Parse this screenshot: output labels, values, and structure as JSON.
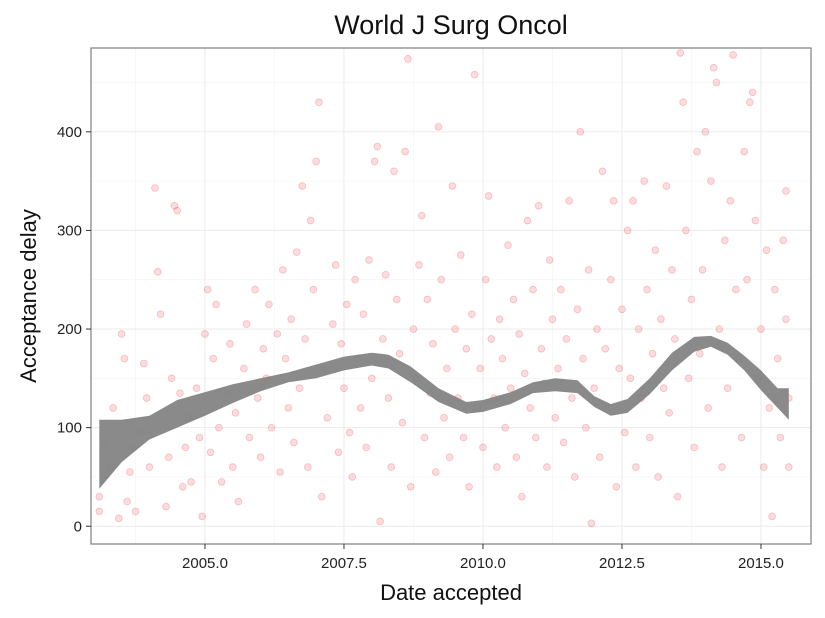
{
  "chart_data": {
    "type": "scatter",
    "title": "World J Surg Oncol",
    "xlabel": "Date accepted",
    "ylabel": "Acceptance delay",
    "xlim": [
      2002.95,
      2015.9
    ],
    "ylim": [
      -18,
      485
    ],
    "x_ticks": [
      2005,
      2007.5,
      2010,
      2012.5,
      2015
    ],
    "x_tick_labels": [
      "2005.0",
      "2007.5",
      "2010.0",
      "2012.5",
      "2015.0"
    ],
    "y_ticks": [
      0,
      100,
      200,
      300,
      400
    ],
    "y_tick_labels": [
      "0",
      "100",
      "200",
      "300",
      "400"
    ],
    "grid": true,
    "colors": {
      "points": "#e8141c",
      "band": "#808080",
      "grid": "#ebebeb",
      "panel_border": "#7f7f7f"
    },
    "point_opacity": 0.15,
    "series": [
      {
        "kind": "points",
        "points": [
          [
            2003.1,
            30
          ],
          [
            2003.1,
            15
          ],
          [
            2003.2,
            85
          ],
          [
            2003.3,
            60
          ],
          [
            2003.35,
            120
          ],
          [
            2003.45,
            8
          ],
          [
            2003.5,
            195
          ],
          [
            2003.55,
            170
          ],
          [
            2003.6,
            25
          ],
          [
            2003.65,
            55
          ],
          [
            2003.7,
            80
          ],
          [
            2003.75,
            15
          ],
          [
            2003.85,
            95
          ],
          [
            2003.9,
            165
          ],
          [
            2003.95,
            130
          ],
          [
            2004.0,
            60
          ],
          [
            2004.1,
            343
          ],
          [
            2004.15,
            258
          ],
          [
            2004.2,
            215
          ],
          [
            2004.3,
            20
          ],
          [
            2004.35,
            70
          ],
          [
            2004.4,
            150
          ],
          [
            2004.45,
            325
          ],
          [
            2004.5,
            320
          ],
          [
            2004.55,
            135
          ],
          [
            2004.6,
            40
          ],
          [
            2004.65,
            80
          ],
          [
            2004.7,
            110
          ],
          [
            2004.75,
            45
          ],
          [
            2004.85,
            140
          ],
          [
            2004.9,
            90
          ],
          [
            2004.95,
            10
          ],
          [
            2005.0,
            195
          ],
          [
            2005.05,
            240
          ],
          [
            2005.1,
            75
          ],
          [
            2005.15,
            170
          ],
          [
            2005.2,
            225
          ],
          [
            2005.25,
            100
          ],
          [
            2005.3,
            45
          ],
          [
            2005.4,
            135
          ],
          [
            2005.45,
            185
          ],
          [
            2005.5,
            60
          ],
          [
            2005.55,
            115
          ],
          [
            2005.6,
            25
          ],
          [
            2005.7,
            160
          ],
          [
            2005.75,
            205
          ],
          [
            2005.8,
            90
          ],
          [
            2005.9,
            240
          ],
          [
            2005.95,
            130
          ],
          [
            2006.0,
            70
          ],
          [
            2006.05,
            180
          ],
          [
            2006.1,
            150
          ],
          [
            2006.15,
            225
          ],
          [
            2006.2,
            100
          ],
          [
            2006.3,
            195
          ],
          [
            2006.35,
            55
          ],
          [
            2006.4,
            260
          ],
          [
            2006.45,
            170
          ],
          [
            2006.5,
            120
          ],
          [
            2006.55,
            210
          ],
          [
            2006.6,
            85
          ],
          [
            2006.65,
            278
          ],
          [
            2006.7,
            140
          ],
          [
            2006.75,
            345
          ],
          [
            2006.8,
            190
          ],
          [
            2006.85,
            60
          ],
          [
            2006.9,
            310
          ],
          [
            2006.95,
            240
          ],
          [
            2007.0,
            370
          ],
          [
            2007.05,
            430
          ],
          [
            2007.1,
            30
          ],
          [
            2007.15,
            160
          ],
          [
            2007.2,
            110
          ],
          [
            2007.3,
            205
          ],
          [
            2007.35,
            265
          ],
          [
            2007.4,
            75
          ],
          [
            2007.45,
            185
          ],
          [
            2007.5,
            140
          ],
          [
            2007.55,
            225
          ],
          [
            2007.6,
            95
          ],
          [
            2007.65,
            50
          ],
          [
            2007.7,
            250
          ],
          [
            2007.75,
            170
          ],
          [
            2007.8,
            120
          ],
          [
            2007.85,
            215
          ],
          [
            2007.9,
            80
          ],
          [
            2007.95,
            270
          ],
          [
            2008.0,
            150
          ],
          [
            2008.05,
            370
          ],
          [
            2008.1,
            385
          ],
          [
            2008.15,
            5
          ],
          [
            2008.2,
            190
          ],
          [
            2008.25,
            255
          ],
          [
            2008.3,
            130
          ],
          [
            2008.35,
            60
          ],
          [
            2008.4,
            360
          ],
          [
            2008.45,
            230
          ],
          [
            2008.5,
            175
          ],
          [
            2008.55,
            105
          ],
          [
            2008.6,
            380
          ],
          [
            2008.65,
            474
          ],
          [
            2008.7,
            40
          ],
          [
            2008.75,
            200
          ],
          [
            2008.8,
            150
          ],
          [
            2008.85,
            265
          ],
          [
            2008.9,
            315
          ],
          [
            2008.95,
            90
          ],
          [
            2009.0,
            230
          ],
          [
            2009.05,
            135
          ],
          [
            2009.1,
            185
          ],
          [
            2009.15,
            55
          ],
          [
            2009.2,
            405
          ],
          [
            2009.25,
            250
          ],
          [
            2009.3,
            110
          ],
          [
            2009.35,
            160
          ],
          [
            2009.4,
            70
          ],
          [
            2009.45,
            345
          ],
          [
            2009.5,
            200
          ],
          [
            2009.55,
            130
          ],
          [
            2009.6,
            275
          ],
          [
            2009.65,
            90
          ],
          [
            2009.7,
            180
          ],
          [
            2009.75,
            40
          ],
          [
            2009.8,
            215
          ],
          [
            2009.85,
            458
          ],
          [
            2009.9,
            120
          ],
          [
            2009.95,
            160
          ],
          [
            2010.0,
            80
          ],
          [
            2010.05,
            250
          ],
          [
            2010.1,
            335
          ],
          [
            2010.15,
            190
          ],
          [
            2010.2,
            130
          ],
          [
            2010.25,
            60
          ],
          [
            2010.3,
            210
          ],
          [
            2010.35,
            170
          ],
          [
            2010.4,
            100
          ],
          [
            2010.45,
            285
          ],
          [
            2010.5,
            140
          ],
          [
            2010.55,
            230
          ],
          [
            2010.6,
            70
          ],
          [
            2010.65,
            195
          ],
          [
            2010.7,
            30
          ],
          [
            2010.75,
            155
          ],
          [
            2010.8,
            310
          ],
          [
            2010.85,
            120
          ],
          [
            2010.9,
            240
          ],
          [
            2010.95,
            90
          ],
          [
            2011.0,
            325
          ],
          [
            2011.05,
            180
          ],
          [
            2011.1,
            145
          ],
          [
            2011.15,
            60
          ],
          [
            2011.2,
            270
          ],
          [
            2011.25,
            210
          ],
          [
            2011.3,
            110
          ],
          [
            2011.35,
            160
          ],
          [
            2011.4,
            240
          ],
          [
            2011.45,
            85
          ],
          [
            2011.5,
            190
          ],
          [
            2011.55,
            330
          ],
          [
            2011.6,
            130
          ],
          [
            2011.65,
            50
          ],
          [
            2011.7,
            220
          ],
          [
            2011.75,
            400
          ],
          [
            2011.8,
            170
          ],
          [
            2011.85,
            100
          ],
          [
            2011.9,
            260
          ],
          [
            2011.95,
            3
          ],
          [
            2012.0,
            140
          ],
          [
            2012.05,
            200
          ],
          [
            2012.1,
            70
          ],
          [
            2012.15,
            360
          ],
          [
            2012.2,
            180
          ],
          [
            2012.25,
            120
          ],
          [
            2012.3,
            250
          ],
          [
            2012.35,
            330
          ],
          [
            2012.4,
            40
          ],
          [
            2012.45,
            160
          ],
          [
            2012.5,
            220
          ],
          [
            2012.55,
            95
          ],
          [
            2012.6,
            300
          ],
          [
            2012.65,
            150
          ],
          [
            2012.7,
            330
          ],
          [
            2012.75,
            60
          ],
          [
            2012.8,
            200
          ],
          [
            2012.85,
            130
          ],
          [
            2012.9,
            350
          ],
          [
            2012.95,
            240
          ],
          [
            2013.0,
            90
          ],
          [
            2013.05,
            175
          ],
          [
            2013.1,
            280
          ],
          [
            2013.15,
            50
          ],
          [
            2013.2,
            210
          ],
          [
            2013.25,
            140
          ],
          [
            2013.3,
            345
          ],
          [
            2013.35,
            115
          ],
          [
            2013.4,
            260
          ],
          [
            2013.45,
            190
          ],
          [
            2013.5,
            30
          ],
          [
            2013.55,
            480
          ],
          [
            2013.6,
            430
          ],
          [
            2013.65,
            300
          ],
          [
            2013.7,
            150
          ],
          [
            2013.75,
            230
          ],
          [
            2013.8,
            80
          ],
          [
            2013.85,
            380
          ],
          [
            2013.9,
            175
          ],
          [
            2013.95,
            260
          ],
          [
            2014.0,
            400
          ],
          [
            2014.05,
            120
          ],
          [
            2014.1,
            350
          ],
          [
            2014.15,
            465
          ],
          [
            2014.2,
            450
          ],
          [
            2014.25,
            200
          ],
          [
            2014.3,
            60
          ],
          [
            2014.35,
            290
          ],
          [
            2014.4,
            140
          ],
          [
            2014.45,
            330
          ],
          [
            2014.5,
            478
          ],
          [
            2014.55,
            240
          ],
          [
            2014.6,
            170
          ],
          [
            2014.65,
            90
          ],
          [
            2014.7,
            380
          ],
          [
            2014.75,
            250
          ],
          [
            2014.8,
            430
          ],
          [
            2014.85,
            440
          ],
          [
            2014.9,
            310
          ],
          [
            2014.95,
            150
          ],
          [
            2015.0,
            200
          ],
          [
            2015.05,
            60
          ],
          [
            2015.1,
            280
          ],
          [
            2015.15,
            120
          ],
          [
            2015.2,
            10
          ],
          [
            2015.25,
            240
          ],
          [
            2015.3,
            170
          ],
          [
            2015.35,
            90
          ],
          [
            2015.4,
            290
          ],
          [
            2015.45,
            210
          ],
          [
            2015.5,
            130
          ],
          [
            2015.5,
            60
          ],
          [
            2015.45,
            340
          ]
        ]
      },
      {
        "kind": "smooth_band",
        "x": [
          2003.1,
          2003.5,
          2004.0,
          2004.5,
          2005.0,
          2005.5,
          2006.0,
          2006.5,
          2007.0,
          2007.5,
          2008.0,
          2008.3,
          2008.7,
          2009.2,
          2009.7,
          2010.0,
          2010.5,
          2010.9,
          2011.3,
          2011.7,
          2012.0,
          2012.3,
          2012.6,
          2013.0,
          2013.4,
          2013.8,
          2014.1,
          2014.4,
          2014.7,
          2015.0,
          2015.3,
          2015.5
        ],
        "lower": [
          38,
          65,
          88,
          100,
          112,
          125,
          137,
          146,
          150,
          158,
          163,
          160,
          146,
          126,
          114,
          116,
          124,
          135,
          137,
          135,
          121,
          112,
          115,
          134,
          158,
          177,
          182,
          174,
          158,
          138,
          120,
          108
        ],
        "upper": [
          108,
          108,
          112,
          128,
          136,
          144,
          150,
          156,
          164,
          172,
          176,
          174,
          162,
          140,
          126,
          128,
          136,
          146,
          150,
          148,
          132,
          124,
          129,
          150,
          176,
          192,
          193,
          186,
          173,
          158,
          140,
          140
        ]
      }
    ]
  }
}
